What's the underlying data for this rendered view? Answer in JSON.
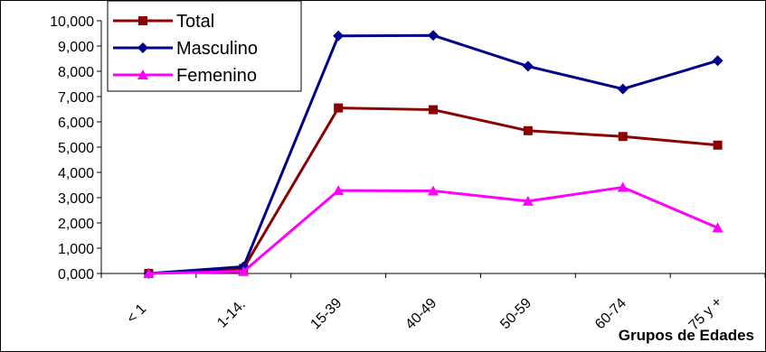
{
  "chart_data": {
    "type": "line",
    "title": "",
    "xlabel": "Grupos de Edades",
    "ylabel": "",
    "categories": [
      "< 1",
      "1-14.",
      "15-39",
      "40-49",
      "50-59",
      "60-74",
      "75 y +"
    ],
    "ylim": [
      0,
      10000
    ],
    "ytick_step": 1000,
    "ytick_labels": [
      "0,000",
      "1,000",
      "2,000",
      "3,000",
      "4,000",
      "5,000",
      "6,000",
      "7,000",
      "8,000",
      "9,000",
      "10,000"
    ],
    "grid": false,
    "legend_position": "top-left",
    "series": [
      {
        "name": "Total",
        "color": "#8B0000",
        "marker": "square",
        "values": [
          0,
          200,
          6550,
          6480,
          5650,
          5420,
          5080
        ]
      },
      {
        "name": "Masculino",
        "color": "#00008B",
        "marker": "diamond",
        "values": [
          0,
          270,
          9400,
          9420,
          8200,
          7300,
          8420
        ]
      },
      {
        "name": "Femenino",
        "color": "#FF00FF",
        "marker": "triangle",
        "values": [
          0,
          80,
          3280,
          3270,
          2860,
          3410,
          1810
        ]
      }
    ]
  }
}
